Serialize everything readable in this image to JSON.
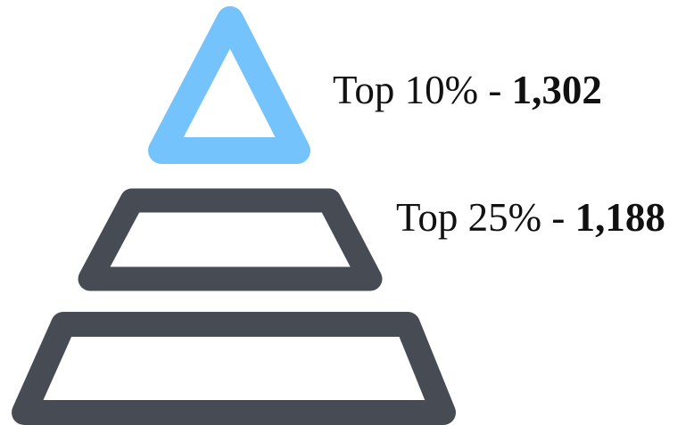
{
  "colors": {
    "highlight": "#74C3FC",
    "tier": "#464B54",
    "background": "#FFFFFF"
  },
  "tiers": [
    {
      "name": "top-tier",
      "label_prefix": "Top 10% - ",
      "value": "1,302",
      "highlighted": true
    },
    {
      "name": "middle-tier",
      "label_prefix": "Top 25% - ",
      "value": "1,188",
      "highlighted": false
    },
    {
      "name": "bottom-tier",
      "highlighted": false
    }
  ]
}
